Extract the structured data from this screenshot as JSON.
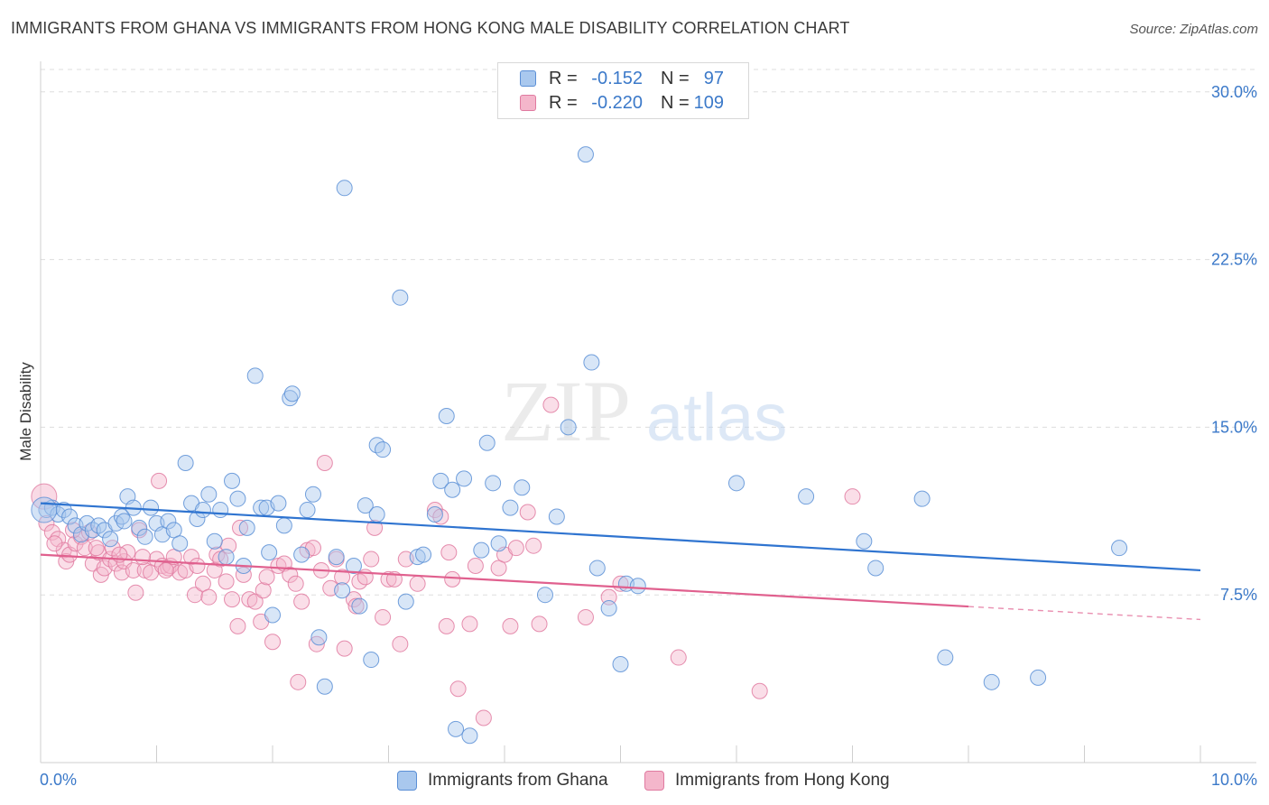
{
  "title": "IMMIGRANTS FROM GHANA VS IMMIGRANTS FROM HONG KONG MALE DISABILITY CORRELATION CHART",
  "source": "Source: ZipAtlas.com",
  "legend": {
    "rows": [
      {
        "r_label": "R =",
        "r_value": "-0.152",
        "n_label": "N =",
        "n_value": "97"
      },
      {
        "r_label": "R =",
        "r_value": "-0.220",
        "n_label": "N =",
        "n_value": "109"
      }
    ]
  },
  "bottom_legend": [
    "Immigrants from Ghana",
    "Immigrants from Hong Kong"
  ],
  "watermark": {
    "zip": "ZIP",
    "atlas": "atlas"
  },
  "colors": {
    "ghana_fill": "#a9c8ee",
    "ghana_stroke": "#5b8fd6",
    "ghana_line": "#2f74d0",
    "hk_fill": "#f4b6cb",
    "hk_stroke": "#e07aa0",
    "hk_line": "#e0608e",
    "tick_text": "#3b79c9",
    "grid": "#dddddd"
  },
  "chart_data": {
    "type": "scatter",
    "xlabel": "",
    "ylabel": "Male Disability",
    "xlim": [
      0,
      10
    ],
    "ylim": [
      0,
      30
    ],
    "x_tick_labels": [
      "0.0%",
      "10.0%"
    ],
    "y_tick_values": [
      7.5,
      15.0,
      22.5,
      30.0
    ],
    "y_tick_labels": [
      "7.5%",
      "15.0%",
      "22.5%",
      "30.0%"
    ],
    "grid": true,
    "legend_position": "top-center",
    "series": [
      {
        "name": "Immigrants from Ghana",
        "r": -0.152,
        "n": 97,
        "trend": {
          "x": [
            0.0,
            10.0
          ],
          "y": [
            11.6,
            8.6
          ],
          "dashed_from": null
        },
        "points": [
          [
            0.05,
            11.3
          ],
          [
            0.1,
            11.4
          ],
          [
            0.15,
            11.1
          ],
          [
            0.2,
            11.3
          ],
          [
            0.25,
            11.0
          ],
          [
            0.3,
            10.6
          ],
          [
            0.35,
            10.2
          ],
          [
            0.4,
            10.7
          ],
          [
            0.45,
            10.4
          ],
          [
            0.5,
            10.6
          ],
          [
            0.55,
            10.4
          ],
          [
            0.6,
            10.0
          ],
          [
            0.65,
            10.7
          ],
          [
            0.7,
            11.0
          ],
          [
            0.72,
            10.8
          ],
          [
            0.75,
            11.9
          ],
          [
            0.8,
            11.4
          ],
          [
            0.85,
            10.5
          ],
          [
            0.9,
            10.1
          ],
          [
            0.95,
            11.4
          ],
          [
            1.0,
            10.7
          ],
          [
            1.05,
            10.2
          ],
          [
            1.1,
            10.8
          ],
          [
            1.15,
            10.4
          ],
          [
            1.2,
            9.8
          ],
          [
            1.25,
            13.4
          ],
          [
            1.3,
            11.6
          ],
          [
            1.35,
            10.9
          ],
          [
            1.4,
            11.3
          ],
          [
            1.45,
            12.0
          ],
          [
            1.5,
            9.9
          ],
          [
            1.55,
            11.3
          ],
          [
            1.6,
            9.2
          ],
          [
            1.65,
            12.6
          ],
          [
            1.7,
            11.8
          ],
          [
            1.75,
            8.8
          ],
          [
            1.78,
            10.5
          ],
          [
            1.85,
            17.3
          ],
          [
            1.9,
            11.4
          ],
          [
            1.95,
            11.4
          ],
          [
            1.97,
            9.4
          ],
          [
            2.0,
            6.6
          ],
          [
            2.05,
            11.6
          ],
          [
            2.1,
            10.6
          ],
          [
            2.15,
            16.3
          ],
          [
            2.17,
            16.5
          ],
          [
            2.25,
            9.3
          ],
          [
            2.3,
            11.3
          ],
          [
            2.35,
            12.0
          ],
          [
            2.4,
            5.6
          ],
          [
            2.45,
            3.4
          ],
          [
            2.55,
            9.2
          ],
          [
            2.6,
            7.7
          ],
          [
            2.62,
            25.7
          ],
          [
            2.7,
            8.8
          ],
          [
            2.75,
            7.0
          ],
          [
            2.8,
            11.5
          ],
          [
            2.85,
            4.6
          ],
          [
            2.9,
            11.1
          ],
          [
            2.9,
            14.2
          ],
          [
            2.95,
            14.0
          ],
          [
            3.1,
            20.8
          ],
          [
            3.15,
            7.2
          ],
          [
            3.25,
            9.2
          ],
          [
            3.3,
            9.3
          ],
          [
            3.4,
            11.1
          ],
          [
            3.45,
            12.6
          ],
          [
            3.5,
            15.5
          ],
          [
            3.55,
            12.2
          ],
          [
            3.58,
            1.5
          ],
          [
            3.65,
            12.7
          ],
          [
            3.7,
            1.2
          ],
          [
            3.8,
            9.5
          ],
          [
            3.85,
            14.3
          ],
          [
            3.9,
            12.5
          ],
          [
            3.95,
            9.8
          ],
          [
            4.05,
            11.4
          ],
          [
            4.15,
            12.3
          ],
          [
            4.35,
            7.5
          ],
          [
            4.45,
            11.0
          ],
          [
            4.55,
            15.0
          ],
          [
            4.7,
            27.2
          ],
          [
            4.75,
            17.9
          ],
          [
            4.8,
            8.7
          ],
          [
            4.9,
            6.9
          ],
          [
            5.0,
            4.4
          ],
          [
            5.05,
            8.0
          ],
          [
            5.15,
            7.9
          ],
          [
            6.0,
            12.5
          ],
          [
            6.6,
            11.9
          ],
          [
            7.1,
            9.9
          ],
          [
            7.2,
            8.7
          ],
          [
            7.6,
            11.8
          ],
          [
            7.8,
            4.7
          ],
          [
            8.2,
            3.6
          ],
          [
            8.6,
            3.8
          ],
          [
            9.3,
            9.6
          ]
        ]
      },
      {
        "name": "Immigrants from Hong Kong",
        "r": -0.22,
        "n": 109,
        "trend": {
          "x": [
            0.0,
            10.0
          ],
          "y": [
            9.3,
            6.4
          ],
          "dashed_from": 8.0
        },
        "points": [
          [
            0.05,
            10.7
          ],
          [
            0.1,
            10.3
          ],
          [
            0.15,
            10.0
          ],
          [
            0.2,
            9.5
          ],
          [
            0.22,
            9.0
          ],
          [
            0.25,
            9.3
          ],
          [
            0.3,
            9.8
          ],
          [
            0.35,
            10.1
          ],
          [
            0.38,
            9.6
          ],
          [
            0.42,
            10.3
          ],
          [
            0.45,
            8.9
          ],
          [
            0.5,
            9.4
          ],
          [
            0.52,
            8.4
          ],
          [
            0.55,
            8.7
          ],
          [
            0.6,
            9.1
          ],
          [
            0.62,
            9.6
          ],
          [
            0.65,
            8.9
          ],
          [
            0.7,
            8.5
          ],
          [
            0.72,
            9.0
          ],
          [
            0.75,
            9.4
          ],
          [
            0.8,
            8.6
          ],
          [
            0.82,
            7.6
          ],
          [
            0.85,
            10.4
          ],
          [
            0.9,
            8.6
          ],
          [
            0.95,
            8.5
          ],
          [
            1.0,
            9.1
          ],
          [
            1.02,
            12.6
          ],
          [
            1.05,
            8.8
          ],
          [
            1.1,
            8.7
          ],
          [
            1.12,
            8.8
          ],
          [
            1.15,
            9.2
          ],
          [
            1.2,
            8.5
          ],
          [
            1.25,
            8.6
          ],
          [
            1.3,
            9.2
          ],
          [
            1.33,
            7.5
          ],
          [
            1.35,
            8.8
          ],
          [
            1.4,
            8.0
          ],
          [
            1.45,
            7.4
          ],
          [
            1.5,
            8.6
          ],
          [
            1.52,
            9.3
          ],
          [
            1.55,
            9.1
          ],
          [
            1.6,
            8.1
          ],
          [
            1.62,
            9.7
          ],
          [
            1.65,
            7.3
          ],
          [
            1.7,
            6.1
          ],
          [
            1.72,
            10.5
          ],
          [
            1.75,
            8.4
          ],
          [
            1.8,
            7.3
          ],
          [
            1.85,
            7.2
          ],
          [
            1.9,
            6.3
          ],
          [
            1.92,
            7.7
          ],
          [
            1.95,
            8.3
          ],
          [
            2.0,
            5.4
          ],
          [
            2.05,
            8.8
          ],
          [
            2.1,
            8.9
          ],
          [
            2.15,
            8.4
          ],
          [
            2.2,
            8.0
          ],
          [
            2.22,
            3.6
          ],
          [
            2.25,
            7.2
          ],
          [
            2.3,
            9.5
          ],
          [
            2.35,
            9.6
          ],
          [
            2.38,
            5.3
          ],
          [
            2.42,
            8.6
          ],
          [
            2.45,
            13.4
          ],
          [
            2.5,
            7.8
          ],
          [
            2.55,
            9.1
          ],
          [
            2.6,
            8.3
          ],
          [
            2.62,
            5.1
          ],
          [
            2.7,
            7.3
          ],
          [
            2.72,
            7.0
          ],
          [
            2.75,
            8.1
          ],
          [
            2.8,
            8.3
          ],
          [
            2.85,
            9.1
          ],
          [
            2.88,
            10.5
          ],
          [
            2.95,
            6.5
          ],
          [
            3.0,
            8.2
          ],
          [
            3.05,
            8.2
          ],
          [
            3.1,
            5.3
          ],
          [
            3.15,
            9.1
          ],
          [
            3.25,
            8.0
          ],
          [
            3.4,
            11.3
          ],
          [
            3.45,
            11.0
          ],
          [
            3.5,
            6.1
          ],
          [
            3.52,
            9.4
          ],
          [
            3.55,
            8.2
          ],
          [
            3.6,
            3.3
          ],
          [
            3.7,
            6.2
          ],
          [
            3.75,
            8.8
          ],
          [
            3.82,
            2.0
          ],
          [
            3.95,
            8.7
          ],
          [
            4.0,
            9.3
          ],
          [
            4.05,
            6.1
          ],
          [
            4.1,
            9.6
          ],
          [
            4.2,
            11.2
          ],
          [
            4.25,
            9.7
          ],
          [
            4.3,
            6.2
          ],
          [
            4.4,
            16.0
          ],
          [
            4.7,
            6.5
          ],
          [
            4.9,
            7.4
          ],
          [
            5.0,
            8.0
          ],
          [
            5.5,
            4.7
          ],
          [
            6.2,
            3.2
          ],
          [
            7.0,
            11.9
          ],
          [
            0.12,
            9.8
          ],
          [
            0.28,
            10.4
          ],
          [
            0.48,
            9.6
          ],
          [
            0.68,
            9.3
          ],
          [
            0.88,
            9.2
          ],
          [
            1.08,
            8.6
          ]
        ]
      }
    ]
  }
}
